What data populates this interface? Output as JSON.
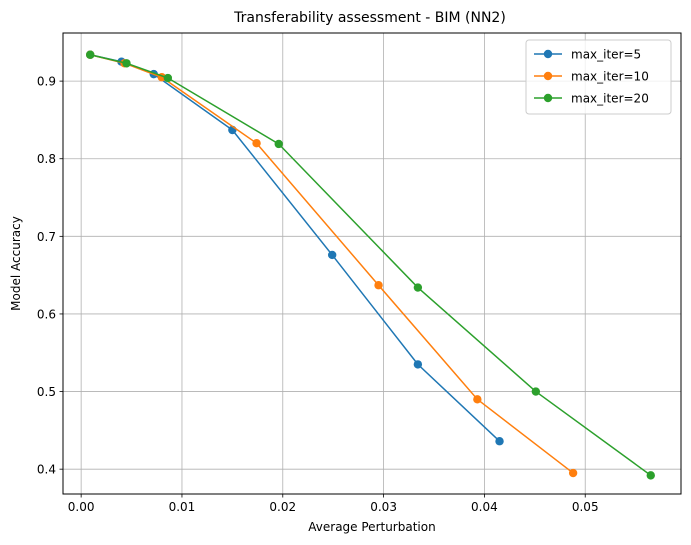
{
  "chart_data": {
    "type": "line",
    "title": "Transferability assessment - BIM (NN2)",
    "xlabel": "Average Perturbation",
    "ylabel": "Model Accuracy",
    "xlim": [
      -0.0018,
      0.0595
    ],
    "ylim": [
      0.368,
      0.962
    ],
    "xticks": [
      0.0,
      0.01,
      0.02,
      0.03,
      0.04,
      0.05
    ],
    "xtick_labels": [
      "0.00",
      "0.01",
      "0.02",
      "0.03",
      "0.04",
      "0.05"
    ],
    "yticks": [
      0.4,
      0.5,
      0.6,
      0.7,
      0.8,
      0.9
    ],
    "ytick_labels": [
      "0.4",
      "0.5",
      "0.6",
      "0.7",
      "0.8",
      "0.9"
    ],
    "grid": true,
    "legend_position": "top-right",
    "series": [
      {
        "name": "max_iter=5",
        "color": "#1f77b4",
        "x": [
          0.0009,
          0.004,
          0.0072,
          0.015,
          0.0249,
          0.0334,
          0.0415
        ],
        "y": [
          0.934,
          0.925,
          0.909,
          0.837,
          0.676,
          0.535,
          0.436
        ]
      },
      {
        "name": "max_iter=10",
        "color": "#ff7f0e",
        "x": [
          0.0009,
          0.0043,
          0.008,
          0.0174,
          0.0295,
          0.0393,
          0.0488
        ],
        "y": [
          0.934,
          0.923,
          0.905,
          0.82,
          0.637,
          0.49,
          0.395
        ]
      },
      {
        "name": "max_iter=20",
        "color": "#2ca02c",
        "x": [
          0.0009,
          0.0045,
          0.0086,
          0.0196,
          0.0334,
          0.0451,
          0.0565
        ],
        "y": [
          0.934,
          0.923,
          0.904,
          0.819,
          0.634,
          0.5,
          0.392
        ]
      }
    ]
  }
}
